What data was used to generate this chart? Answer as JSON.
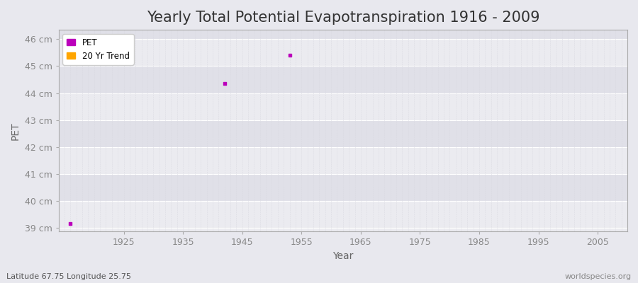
{
  "title": "Yearly Total Potential Evapotranspiration 1916 - 2009",
  "xlabel": "Year",
  "ylabel": "PET",
  "xlim": [
    1914,
    2010
  ],
  "ylim": [
    38.85,
    46.35
  ],
  "yticks": [
    39,
    40,
    41,
    42,
    43,
    44,
    45,
    46
  ],
  "ytick_labels": [
    "39 cm",
    "40 cm",
    "41 cm",
    "42 cm",
    "43 cm",
    "44 cm",
    "45 cm",
    "46 cm"
  ],
  "xticks": [
    1925,
    1935,
    1945,
    1955,
    1965,
    1975,
    1985,
    1995,
    2005
  ],
  "data_points": [
    {
      "year": 1916,
      "value": 39.15
    },
    {
      "year": 1942,
      "value": 44.35
    },
    {
      "year": 1953,
      "value": 45.4
    }
  ],
  "pet_color": "#BB00BB",
  "trend_color": "#FFA500",
  "fig_bg_color": "#e8e8ee",
  "plot_bg_light": "#ebebf0",
  "plot_bg_dark": "#e0e0e8",
  "hgrid_color": "#ffffff",
  "vgrid_minor_color": "#d8d8e0",
  "legend_labels": [
    "PET",
    "20 Yr Trend"
  ],
  "subtitle_left": "Latitude 67.75 Longitude 25.75",
  "subtitle_right": "worldspecies.org",
  "title_fontsize": 15,
  "axis_label_fontsize": 10,
  "tick_fontsize": 9,
  "spine_color": "#aaaaaa"
}
